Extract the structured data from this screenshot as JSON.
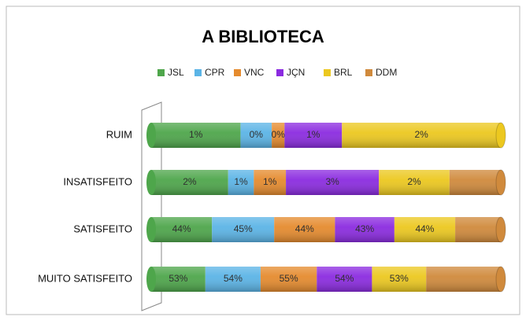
{
  "chart_data": {
    "type": "stacked-bar-100",
    "title": "A BIBLIOTECA",
    "categories": [
      "RUIM",
      "INSATISFEITO",
      "SATISFEITO",
      "MUITO SATISFEITO"
    ],
    "legend": "top",
    "series": [
      {
        "name": "JSL",
        "color": "#4ea64b",
        "values": [
          1.4,
          2.4,
          44,
          53
        ],
        "value_labels": [
          "1%",
          "2%",
          "44%",
          "53%"
        ]
      },
      {
        "name": "CPR",
        "color": "#5bb4e6",
        "values": [
          0.49,
          0.8,
          45,
          54
        ],
        "value_labels": [
          "0%",
          "1%",
          "45%",
          "54%"
        ]
      },
      {
        "name": "VNC",
        "color": "#e58b2e",
        "values": [
          0.2,
          1.0,
          44,
          55
        ],
        "value_labels": [
          "0%",
          "1%",
          "44%",
          "55%"
        ]
      },
      {
        "name": "JÇN",
        "color": "#8b2be0",
        "values": [
          0.9,
          2.9,
          43,
          54
        ],
        "value_labels": [
          "1%",
          "3%",
          "43%",
          "54%"
        ]
      },
      {
        "name": "BRL",
        "color": "#ecc81f",
        "values": [
          2.49,
          2.2,
          44,
          53
        ],
        "value_labels": [
          "2%",
          "2%",
          "44%",
          "53%"
        ]
      },
      {
        "name": "DDM",
        "color": "#d08a3c",
        "values": [
          0,
          1.6,
          33,
          73
        ],
        "value_labels": [
          null,
          null,
          null,
          null
        ]
      }
    ]
  }
}
